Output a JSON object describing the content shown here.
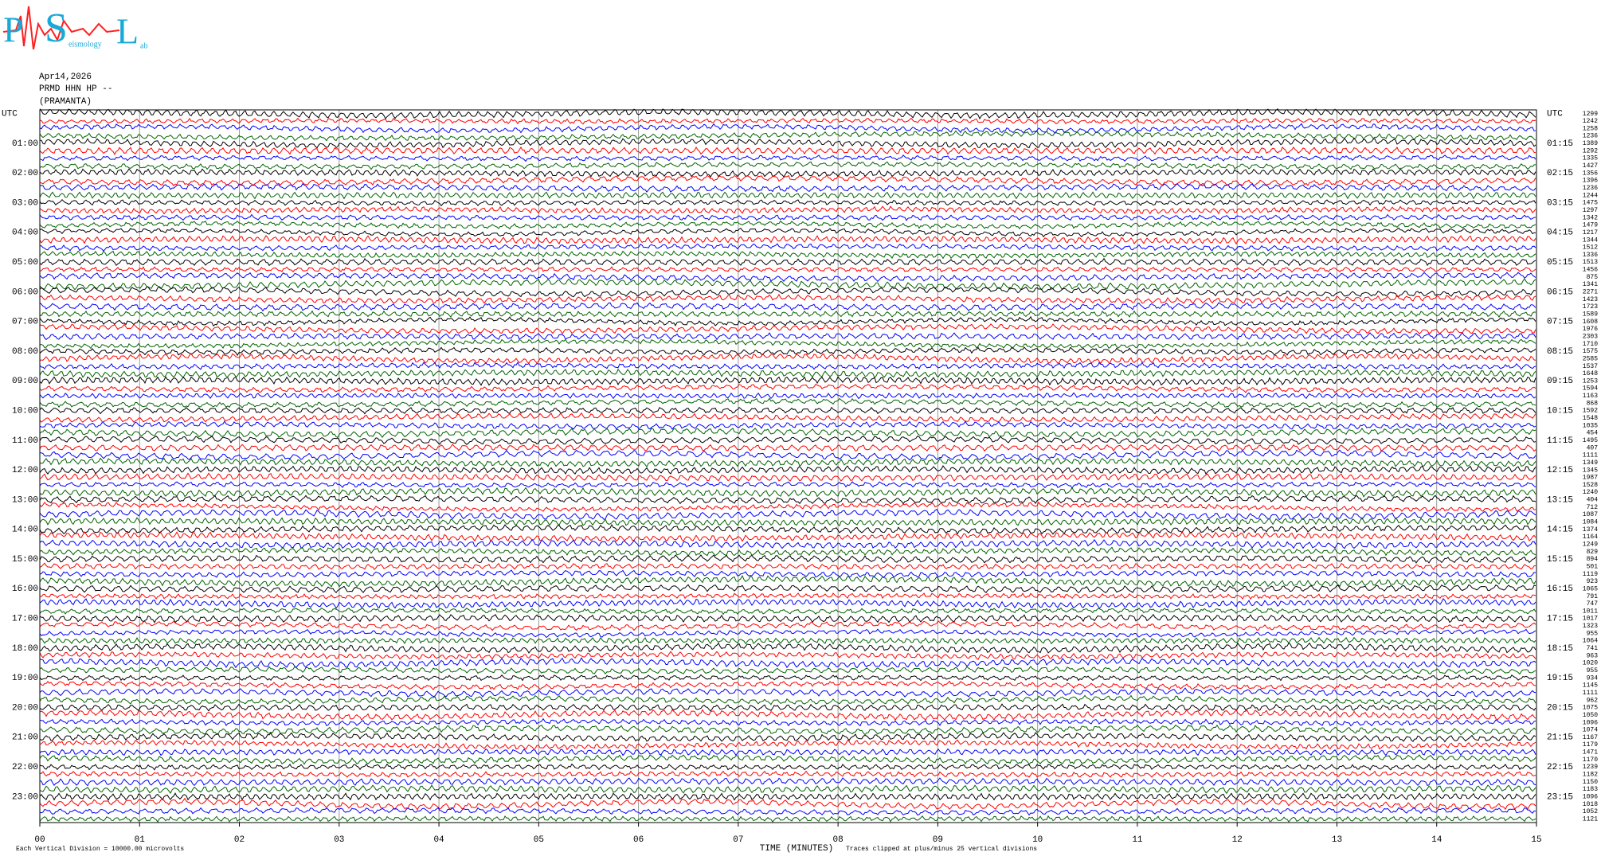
{
  "header": {
    "date": "Apr14,2026",
    "station": "PRMD HHN HP --",
    "location": "(PRAMANTA)",
    "logo": {
      "letters": [
        "P",
        "S",
        "L"
      ],
      "words": [
        "eismology",
        "ab"
      ]
    }
  },
  "chart_data": {
    "type": "helicorder",
    "x_label": "TIME (MINUTES)",
    "xlim": [
      0,
      15
    ],
    "xticks": [
      {
        "value": 0,
        "label": "00"
      },
      {
        "value": 1,
        "label": "01"
      },
      {
        "value": 2,
        "label": "02"
      },
      {
        "value": 3,
        "label": "03"
      },
      {
        "value": 4,
        "label": "04"
      },
      {
        "value": 5,
        "label": "05"
      },
      {
        "value": 6,
        "label": "06"
      },
      {
        "value": 7,
        "label": "07"
      },
      {
        "value": 8,
        "label": "08"
      },
      {
        "value": 9,
        "label": "09"
      },
      10,
      11,
      12,
      13,
      14,
      15
    ],
    "left_labels": [
      "UTC",
      "01:00",
      "02:00",
      "03:00",
      "04:00",
      "05:00",
      "06:00",
      "07:00",
      "08:00",
      "09:00",
      "10:00",
      "11:00",
      "12:00",
      "13:00",
      "14:00",
      "15:00",
      "16:00",
      "17:00",
      "18:00",
      "19:00",
      "20:00",
      "21:00",
      "22:00",
      "23:00"
    ],
    "right_labels": [
      "UTC",
      "01:15",
      "02:15",
      "03:15",
      "04:15",
      "05:15",
      "06:15",
      "07:15",
      "08:15",
      "09:15",
      "10:15",
      "11:15",
      "12:15",
      "13:15",
      "14:15",
      "15:15",
      "16:15",
      "17:15",
      "18:15",
      "19:15",
      "20:15",
      "21:15",
      "22:15",
      "23:15"
    ],
    "trace_values": [
      1299,
      1242,
      1258,
      1236,
      1389,
      1292,
      1335,
      1427,
      1356,
      1396,
      1236,
      1244,
      1475,
      1297,
      1342,
      1479,
      1217,
      1344,
      1512,
      1336,
      1513,
      1456,
      875,
      1341,
      2271,
      1423,
      1723,
      1589,
      1608,
      1976,
      2303,
      1710,
      1575,
      2585,
      1537,
      1648,
      1253,
      1594,
      1163,
      868,
      1592,
      1548,
      1035,
      454,
      1495,
      407,
      1111,
      1349,
      1345,
      1987,
      1528,
      1240,
      404,
      712,
      1087,
      1084,
      1374,
      1164,
      1249,
      829,
      894,
      501,
      1119,
      923,
      1065,
      791,
      747,
      1011,
      1017,
      1323,
      955,
      1064,
      741,
      963,
      1020,
      955,
      934,
      1145,
      1111,
      962,
      1075,
      1050,
      1096,
      1074,
      1167,
      1179,
      1471,
      1170,
      1239,
      1182,
      1150,
      1183,
      1096,
      1018,
      1052,
      1121
    ],
    "trace_colors": [
      "#000000",
      "#ff0000",
      "#0000ff",
      "#006400"
    ],
    "grid": true,
    "footer_left": "Each Vertical Division = 10000.00 microvolts",
    "footer_note": "Traces clipped at plus/minus 25 vertical divisions"
  }
}
